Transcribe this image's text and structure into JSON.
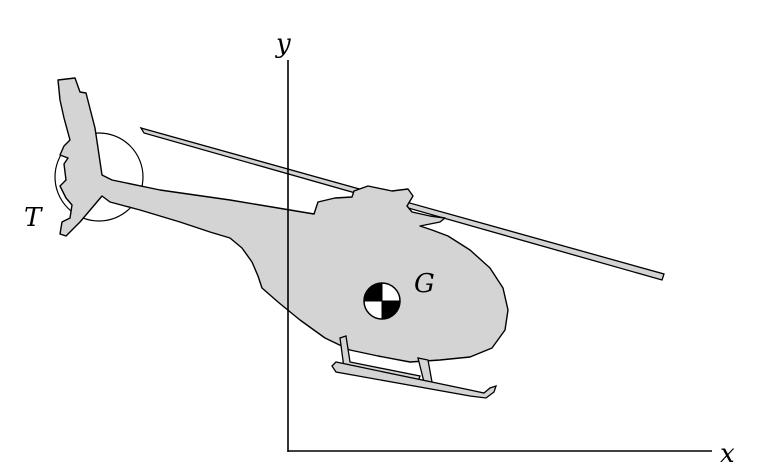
{
  "labels": {
    "y_axis": "y",
    "x_axis": "x",
    "tail_rotor": "T",
    "center_of_mass": "G"
  },
  "colors": {
    "body_fill": "#d4d4d4",
    "line": "#000000",
    "background": "#ffffff"
  }
}
